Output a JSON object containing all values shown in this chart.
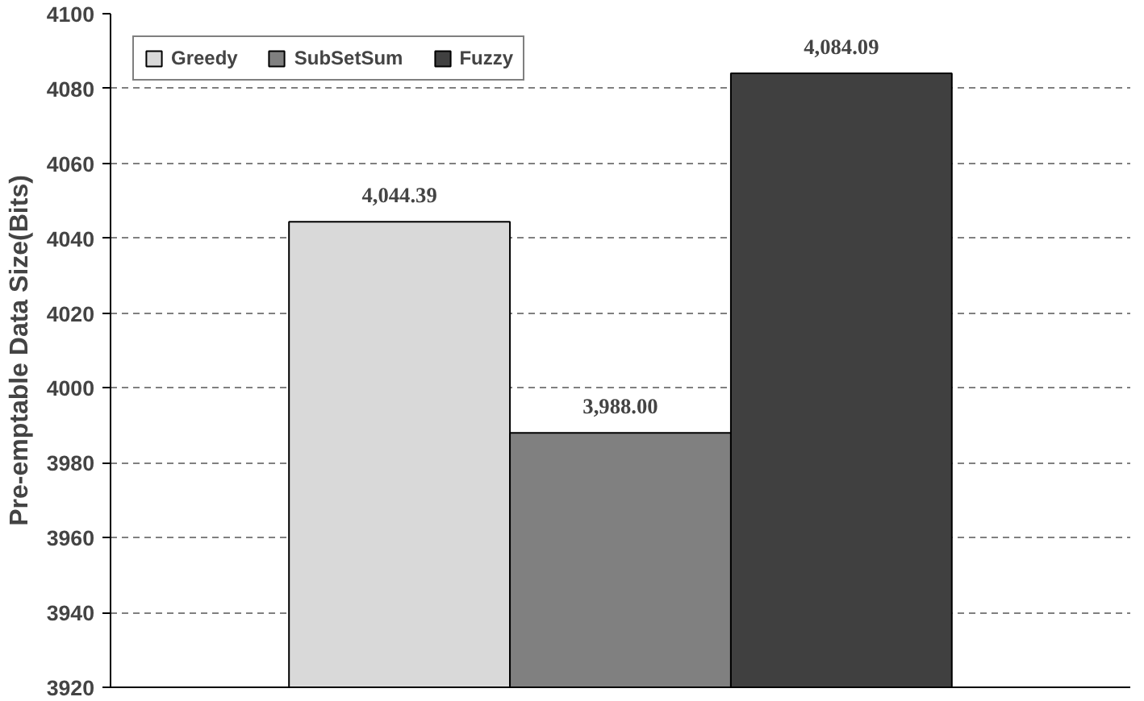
{
  "chart_data": {
    "type": "bar",
    "ylabel": "Pre-emptable Data Size(Bits)",
    "categories": [
      null
    ],
    "series": [
      {
        "name": "Greedy",
        "color": "#d9d9d9",
        "values": [
          4044.39
        ],
        "value_labels": [
          "4,044.39"
        ]
      },
      {
        "name": "SubSetSum",
        "color": "#808080",
        "values": [
          3988.0
        ],
        "value_labels": [
          "3,988.00"
        ]
      },
      {
        "name": "Fuzzy",
        "color": "#404040",
        "values": [
          4084.09
        ],
        "value_labels": [
          "4,084.09"
        ]
      }
    ],
    "ylim": [
      3920,
      4100
    ],
    "yticks": [
      3920,
      3940,
      3960,
      3980,
      4000,
      4020,
      4040,
      4060,
      4080,
      4100
    ],
    "grid": "y",
    "legend": "top left"
  }
}
